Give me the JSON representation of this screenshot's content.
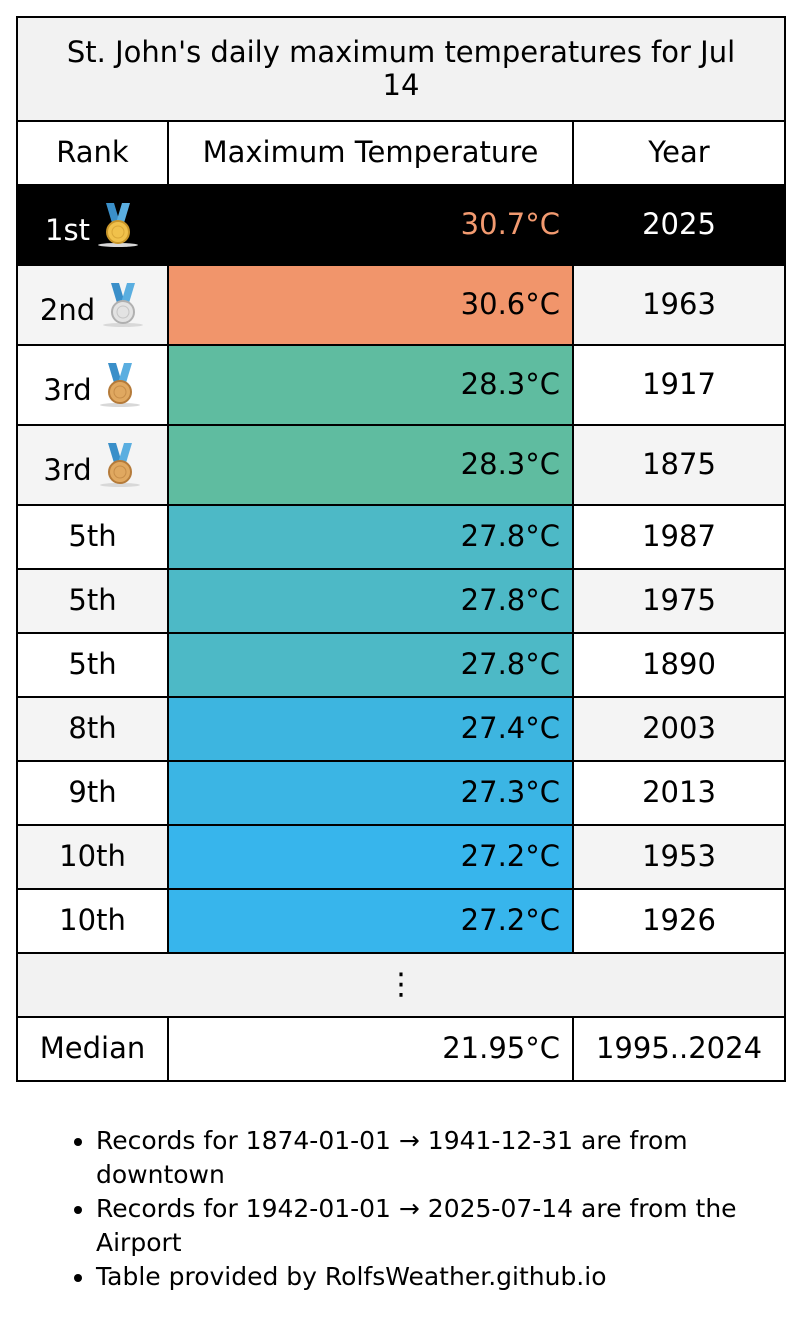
{
  "table": {
    "title": "St. John's daily maximum temperatures for Jul 14",
    "columns": [
      "Rank",
      "Maximum Temperature",
      "Year"
    ],
    "rows": [
      {
        "rank": "1st",
        "medal": "gold-medal-icon",
        "temp": "30.7°C",
        "year": "2025",
        "fill": "#000000",
        "text_color": "#f29a70"
      },
      {
        "rank": "2nd",
        "medal": "silver-medal-icon",
        "temp": "30.6°C",
        "year": "1963",
        "fill": "#f1956b"
      },
      {
        "rank": "3rd",
        "medal": "bronze-medal-icon",
        "temp": "28.3°C",
        "year": "1917",
        "fill": "#5fbca0"
      },
      {
        "rank": "3rd",
        "medal": "bronze-medal-icon",
        "temp": "28.3°C",
        "year": "1875",
        "fill": "#5fbca0"
      },
      {
        "rank": "5th",
        "temp": "27.8°C",
        "year": "1987",
        "fill": "#4db9c6"
      },
      {
        "rank": "5th",
        "temp": "27.8°C",
        "year": "1975",
        "fill": "#4db9c6"
      },
      {
        "rank": "5th",
        "temp": "27.8°C",
        "year": "1890",
        "fill": "#4db9c6"
      },
      {
        "rank": "8th",
        "temp": "27.4°C",
        "year": "2003",
        "fill": "#3db5e0"
      },
      {
        "rank": "9th",
        "temp": "27.3°C",
        "year": "2013",
        "fill": "#3bb5e4"
      },
      {
        "rank": "10th",
        "temp": "27.2°C",
        "year": "1953",
        "fill": "#37b5ec"
      },
      {
        "rank": "10th",
        "temp": "27.2°C",
        "year": "1926",
        "fill": "#37b5ec"
      }
    ],
    "ellipsis": "⋮",
    "median": {
      "label": "Median",
      "temp": "21.95°C",
      "years": "1995..2024"
    }
  },
  "notes": [
    "Records for 1874-01-01 → 1941-12-31 are from downtown",
    "Records for 1942-01-01 → 2025-07-14 are from the Airport",
    "Table provided by RolfsWeather.github.io"
  ]
}
